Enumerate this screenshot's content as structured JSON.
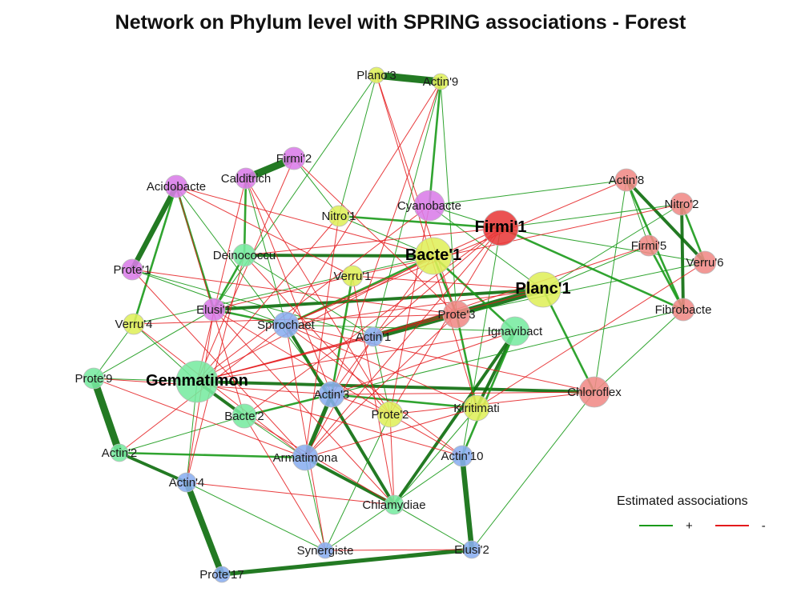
{
  "title": "Network on Phylum level with SPRING associations - Forest",
  "legend": {
    "title": "Estimated associations",
    "items": [
      {
        "sign": "+",
        "color": "#1a9a1a"
      },
      {
        "sign": "-",
        "color": "#e41a1c"
      }
    ]
  },
  "colors": {
    "positive": "#1a9a1a",
    "positive_strong": "#0b6b0b",
    "negative": "#e41a1c"
  },
  "clusters": {
    "yellow": "#dfef5a",
    "salmon": "#f08a86",
    "green": "#78eaa0",
    "blue": "#8aaef0",
    "violet": "#da7ce8",
    "red": "#e83a3a"
  },
  "nodes": [
    {
      "id": "Plano3",
      "label": "Plano'3",
      "cluster": "yellow",
      "size": 1
    },
    {
      "id": "Actin9",
      "label": "Actin'9",
      "cluster": "yellow",
      "size": 1
    },
    {
      "id": "Firmi2",
      "label": "Firmi'2",
      "cluster": "violet",
      "size": 1.4
    },
    {
      "id": "Calditrich",
      "label": "Calditrich",
      "cluster": "violet",
      "size": 1.3
    },
    {
      "id": "Acidobacte",
      "label": "Acidobacte",
      "cluster": "violet",
      "size": 1.4
    },
    {
      "id": "Nitro1",
      "label": "Nitro'1",
      "cluster": "yellow",
      "size": 1.3
    },
    {
      "id": "Cyanobacte",
      "label": "Cyanobacte",
      "cluster": "violet",
      "size": 1.9
    },
    {
      "id": "Firmi1",
      "label": "Firmi'1",
      "cluster": "red",
      "size": 2.2,
      "hub": true
    },
    {
      "id": "Actin8",
      "label": "Actin'8",
      "cluster": "salmon",
      "size": 1.4
    },
    {
      "id": "Nitro2",
      "label": "Nitro'2",
      "cluster": "salmon",
      "size": 1.4
    },
    {
      "id": "Firmi5",
      "label": "Firmi'5",
      "cluster": "salmon",
      "size": 1.3
    },
    {
      "id": "Verru6",
      "label": "Verru'6",
      "cluster": "salmon",
      "size": 1.4
    },
    {
      "id": "Deinococcu",
      "label": "Deinococcu",
      "cluster": "green",
      "size": 1.4
    },
    {
      "id": "Bacte1",
      "label": "Bacte'1",
      "cluster": "yellow",
      "size": 2.3,
      "hub": true
    },
    {
      "id": "Prote1",
      "label": "Prote'1",
      "cluster": "violet",
      "size": 1.3
    },
    {
      "id": "Verru1",
      "label": "Verru'1",
      "cluster": "yellow",
      "size": 1.3
    },
    {
      "id": "Planc1",
      "label": "Planc'1",
      "cluster": "yellow",
      "size": 2.2,
      "hub": true
    },
    {
      "id": "Fibrobacte",
      "label": "Fibrobacte",
      "cluster": "salmon",
      "size": 1.4
    },
    {
      "id": "Elusi1",
      "label": "Elusi'1",
      "cluster": "violet",
      "size": 1.4
    },
    {
      "id": "Verru4",
      "label": "Verru'4",
      "cluster": "yellow",
      "size": 1.3
    },
    {
      "id": "Spirochaet",
      "label": "Spirochaet",
      "cluster": "blue",
      "size": 1.6
    },
    {
      "id": "Prote3",
      "label": "Prote'3",
      "cluster": "salmon",
      "size": 1.7
    },
    {
      "id": "Actin1",
      "label": "Actin'1",
      "cluster": "blue",
      "size": 1.2
    },
    {
      "id": "Ignavibact",
      "label": "Ignavibact",
      "cluster": "green",
      "size": 1.8
    },
    {
      "id": "Prote9",
      "label": "Prote'9",
      "cluster": "green",
      "size": 1.3
    },
    {
      "id": "Gemmatimon",
      "label": "Gemmatimon",
      "cluster": "green",
      "size": 2.6,
      "hub": true
    },
    {
      "id": "Chloroflex",
      "label": "Chloroflex",
      "cluster": "salmon",
      "size": 1.9
    },
    {
      "id": "Actin3",
      "label": "Actin'3",
      "cluster": "blue",
      "size": 1.6
    },
    {
      "id": "Bacte2",
      "label": "Bacte'2",
      "cluster": "green",
      "size": 1.5
    },
    {
      "id": "Prote2",
      "label": "Prote'2",
      "cluster": "yellow",
      "size": 1.6
    },
    {
      "id": "Kiritimati",
      "label": "Kiritimati",
      "cluster": "yellow",
      "size": 1.6
    },
    {
      "id": "Actin2",
      "label": "Actin'2",
      "cluster": "green",
      "size": 1.1
    },
    {
      "id": "Armatimona",
      "label": "Armatimona",
      "cluster": "blue",
      "size": 1.6
    },
    {
      "id": "Actin10",
      "label": "Actin'10",
      "cluster": "blue",
      "size": 1.3
    },
    {
      "id": "Actin4",
      "label": "Actin'4",
      "cluster": "blue",
      "size": 1.2
    },
    {
      "id": "Chlamydiae",
      "label": "Chlamydiae",
      "cluster": "green",
      "size": 1.2
    },
    {
      "id": "Synergiste",
      "label": "Synergiste",
      "cluster": "blue",
      "size": 1.0
    },
    {
      "id": "Elusi2",
      "label": "Elusi'2",
      "cluster": "blue",
      "size": 1.1
    },
    {
      "id": "Prote17",
      "label": "Prote'17",
      "cluster": "blue",
      "size": 1.0
    }
  ],
  "edges": [
    [
      "Plano3",
      "Actin9",
      "p",
      7
    ],
    [
      "Firmi2",
      "Calditrich",
      "p",
      7
    ],
    [
      "Acidobacte",
      "Prote1",
      "p",
      5
    ],
    [
      "Prote9",
      "Actin2",
      "p",
      7
    ],
    [
      "Actin4",
      "Prote17",
      "p",
      6
    ],
    [
      "Prote17",
      "Elusi2",
      "p",
      4
    ],
    [
      "Actin10",
      "Elusi2",
      "p",
      5
    ],
    [
      "Actin1",
      "Planc1",
      "p",
      6
    ],
    [
      "Bacte1",
      "Deinococcu",
      "p",
      3
    ],
    [
      "Elusi1",
      "Planc1",
      "p",
      3
    ],
    [
      "Ignavibact",
      "Kiritimati",
      "p",
      3
    ],
    [
      "Ignavibact",
      "Chlamydiae",
      "p",
      3
    ],
    [
      "Gemmatimon",
      "Chloroflex",
      "p",
      3
    ],
    [
      "Actin3",
      "Armatimona",
      "p",
      4
    ],
    [
      "Armatimona",
      "Chlamydiae",
      "p",
      3
    ],
    [
      "Actin2",
      "Actin4",
      "p",
      3
    ],
    [
      "Actin2",
      "Armatimona",
      "p",
      2
    ],
    [
      "Spirochaet",
      "Chlamydiae",
      "p",
      3
    ],
    [
      "Actin8",
      "Verru6",
      "p",
      3
    ],
    [
      "Nitro2",
      "Fibrobacte",
      "p",
      3
    ],
    [
      "Firmi1",
      "Fibrobacte",
      "p",
      2
    ],
    [
      "Actin8",
      "Fibrobacte",
      "p",
      2
    ],
    [
      "Bacte1",
      "Prote3",
      "p",
      2
    ],
    [
      "Prote3",
      "Kiritimati",
      "p",
      2
    ],
    [
      "Spirochaet",
      "Bacte1",
      "p",
      2
    ],
    [
      "Gemmatimon",
      "Bacte2",
      "p",
      3
    ],
    [
      "Deinococcu",
      "Elusi1",
      "p",
      2
    ],
    [
      "Bacte2",
      "Actin3",
      "p",
      2
    ],
    [
      "Actin9",
      "Cyanobacte",
      "p",
      2
    ],
    [
      "Nitro1",
      "Firmi1",
      "p",
      2
    ],
    [
      "Calditrich",
      "Deinococcu",
      "p",
      2
    ],
    [
      "Acidobacte",
      "Verru4",
      "p",
      2
    ],
    [
      "Prote9",
      "Verru4",
      "p",
      1
    ],
    [
      "Planc1",
      "Chloroflex",
      "p",
      2
    ],
    [
      "Firmi1",
      "Verru6",
      "p",
      1
    ],
    [
      "Planc1",
      "Firmi5",
      "p",
      1
    ],
    [
      "Cyanobacte",
      "Planc1",
      "p",
      1
    ],
    [
      "Bacte1",
      "Ignavibact",
      "p",
      2
    ],
    [
      "Verru1",
      "Actin3",
      "p",
      2
    ],
    [
      "Actin1",
      "Prote2",
      "p",
      1
    ],
    [
      "Actin3",
      "Kiritimati",
      "p",
      2
    ],
    [
      "Synergiste",
      "Actin10",
      "p",
      1
    ],
    [
      "Chlamydiae",
      "Elusi2",
      "p",
      1
    ],
    [
      "Actin4",
      "Synergiste",
      "p",
      1
    ],
    [
      "Gemmatimon",
      "Actin4",
      "p",
      1
    ],
    [
      "Elusi1",
      "Spirochaet",
      "p",
      2
    ],
    [
      "Prote1",
      "Spirochaet",
      "p",
      1
    ],
    [
      "Firmi2",
      "Nitro1",
      "p",
      1
    ],
    [
      "Plano3",
      "Nitro1",
      "p",
      1
    ],
    [
      "Actin9",
      "Prote3",
      "p",
      1
    ],
    [
      "Plano3",
      "Elusi1",
      "p",
      1
    ],
    [
      "Calditrich",
      "Spirochaet",
      "p",
      1
    ],
    [
      "Acidobacte",
      "Elusi1",
      "p",
      2
    ],
    [
      "Prote1",
      "Actin1",
      "p",
      1
    ],
    [
      "Verru4",
      "Bacte1",
      "p",
      1
    ],
    [
      "Deinococcu",
      "Actin1",
      "p",
      1
    ],
    [
      "Actin8",
      "Chloroflex",
      "p",
      1
    ],
    [
      "Nitro2",
      "Planc1",
      "p",
      1
    ],
    [
      "Firmi5",
      "Fibrobacte",
      "p",
      2
    ],
    [
      "Verru6",
      "Prote3",
      "p",
      1
    ],
    [
      "Fibrobacte",
      "Chloroflex",
      "p",
      1
    ],
    [
      "Cyanobacte",
      "Firmi1",
      "p",
      1
    ],
    [
      "Bacte1",
      "Nitro1",
      "p",
      1
    ],
    [
      "Chloroflex",
      "Elusi2",
      "p",
      1
    ],
    [
      "Ignavibact",
      "Actin10",
      "p",
      2
    ],
    [
      "Kiritimati",
      "Chlamydiae",
      "p",
      1
    ],
    [
      "Prote2",
      "Synergiste",
      "p",
      1
    ],
    [
      "Armatimona",
      "Synergiste",
      "p",
      1
    ],
    [
      "Bacte2",
      "Armatimona",
      "p",
      1
    ],
    [
      "Prote9",
      "Gemmatimon",
      "p",
      1
    ],
    [
      "Actin2",
      "Bacte2",
      "p",
      1
    ],
    [
      "Verru4",
      "Gemmatimon",
      "p",
      1
    ],
    [
      "Acidobacte",
      "Actin3",
      "p",
      1
    ],
    [
      "Cyanobacte",
      "Actin8",
      "p",
      1
    ],
    [
      "Actin9",
      "Actin1",
      "p",
      1
    ],
    [
      "Firmi1",
      "Actin10",
      "p",
      1
    ],
    [
      "Prote9",
      "Elusi1",
      "p",
      1
    ],
    [
      "Fibrobacte",
      "Actin3",
      "p",
      1
    ],
    [
      "Spirochaet",
      "Ignavibact",
      "p",
      1
    ],
    [
      "Nitro2",
      "Verru6",
      "p",
      2
    ],
    [
      "Actin8",
      "Firmi5",
      "p",
      1
    ],
    [
      "Firmi1",
      "Nitro2",
      "p",
      1
    ],
    [
      "Firmi1",
      "Spirochaet",
      "n",
      1
    ],
    [
      "Firmi1",
      "Bacte2",
      "n",
      1
    ],
    [
      "Firmi1",
      "Armatimona",
      "n",
      1
    ],
    [
      "Firmi1",
      "Prote2",
      "n",
      1
    ],
    [
      "Firmi1",
      "Deinococcu",
      "n",
      1
    ],
    [
      "Firmi1",
      "Actin1",
      "n",
      1
    ],
    [
      "Bacte1",
      "Actin3",
      "n",
      1
    ],
    [
      "Bacte1",
      "Gemmatimon",
      "n",
      1
    ],
    [
      "Bacte1",
      "Acidobacte",
      "n",
      1
    ],
    [
      "Planc1",
      "Gemmatimon",
      "n",
      1
    ],
    [
      "Planc1",
      "Spirochaet",
      "n",
      1
    ],
    [
      "Planc1",
      "Verru1",
      "n",
      1
    ],
    [
      "Actin8",
      "Spirochaet",
      "n",
      1
    ],
    [
      "Nitro2",
      "Verru1",
      "n",
      1
    ],
    [
      "Firmi5",
      "Actin1",
      "n",
      1
    ],
    [
      "Verru6",
      "Kiritimati",
      "n",
      1
    ],
    [
      "Chloroflex",
      "Prote2",
      "n",
      1
    ],
    [
      "Chloroflex",
      "Spirochaet",
      "n",
      1
    ],
    [
      "Actin3",
      "Prote2",
      "n",
      1
    ],
    [
      "Actin3",
      "Chloroflex",
      "n",
      1
    ],
    [
      "Actin1",
      "Gemmatimon",
      "n",
      1
    ],
    [
      "Actin1",
      "Armatimona",
      "n",
      1
    ],
    [
      "Actin9",
      "Actin3",
      "n",
      1
    ],
    [
      "Actin9",
      "Spirochaet",
      "n",
      1
    ],
    [
      "Plano3",
      "Prote3",
      "n",
      1
    ],
    [
      "Plano3",
      "Kiritimati",
      "n",
      1
    ],
    [
      "Firmi2",
      "Gemmatimon",
      "n",
      1
    ],
    [
      "Firmi2",
      "Prote3",
      "n",
      1
    ],
    [
      "Calditrich",
      "Actin3",
      "n",
      1
    ],
    [
      "Calditrich",
      "Prote2",
      "n",
      1
    ],
    [
      "Calditrich",
      "Gemmatimon",
      "n",
      1
    ],
    [
      "Acidobacte",
      "Verru1",
      "n",
      1
    ],
    [
      "Acidobacte",
      "Bacte2",
      "n",
      1
    ],
    [
      "Prote1",
      "Prote3",
      "n",
      1
    ],
    [
      "Prote1",
      "Armatimona",
      "n",
      1
    ],
    [
      "Elusi1",
      "Actin4",
      "n",
      1
    ],
    [
      "Elusi1",
      "Prote2",
      "n",
      1
    ],
    [
      "Elusi1",
      "Chlamydiae",
      "n",
      1
    ],
    [
      "Verru4",
      "Armatimona",
      "n",
      1
    ],
    [
      "Verru4",
      "Prote3",
      "n",
      1
    ],
    [
      "Spirochaet",
      "Synergiste",
      "n",
      1
    ],
    [
      "Spirochaet",
      "Kiritimati",
      "n",
      1
    ],
    [
      "Spirochaet",
      "Actin10",
      "n",
      1
    ],
    [
      "Deinococcu",
      "Prote2",
      "n",
      1
    ],
    [
      "Deinococcu",
      "Actin4",
      "n",
      1
    ],
    [
      "Verru1",
      "Chlamydiae",
      "n",
      1
    ],
    [
      "Verru1",
      "Elusi1",
      "n",
      1
    ],
    [
      "Cyanobacte",
      "Gemmatimon",
      "n",
      1
    ],
    [
      "Cyanobacte",
      "Prote2",
      "n",
      1
    ],
    [
      "Nitro1",
      "Armatimona",
      "n",
      1
    ],
    [
      "Nitro1",
      "Gemmatimon",
      "n",
      1
    ],
    [
      "Prote3",
      "Gemmatimon",
      "n",
      1
    ],
    [
      "Prote3",
      "Armatimona",
      "n",
      1
    ],
    [
      "Ignavibact",
      "Gemmatimon",
      "n",
      1
    ],
    [
      "Ignavibact",
      "Actin3",
      "n",
      1
    ],
    [
      "Kiritimati",
      "Armatimona",
      "n",
      1
    ],
    [
      "Prote2",
      "Actin10",
      "n",
      1
    ],
    [
      "Prote2",
      "Chlamydiae",
      "n",
      1
    ],
    [
      "Bacte2",
      "Chlamydiae",
      "n",
      1
    ],
    [
      "Bacte2",
      "Synergiste",
      "n",
      1
    ],
    [
      "Gemmatimon",
      "Actin10",
      "n",
      1
    ],
    [
      "Actin2",
      "Spirochaet",
      "n",
      1
    ],
    [
      "Actin4",
      "Chlamydiae",
      "n",
      1
    ],
    [
      "Prote9",
      "Armatimona",
      "n",
      1
    ],
    [
      "Prote9",
      "Actin3",
      "n",
      1
    ],
    [
      "Synergiste",
      "Elusi2",
      "n",
      1
    ]
  ]
}
